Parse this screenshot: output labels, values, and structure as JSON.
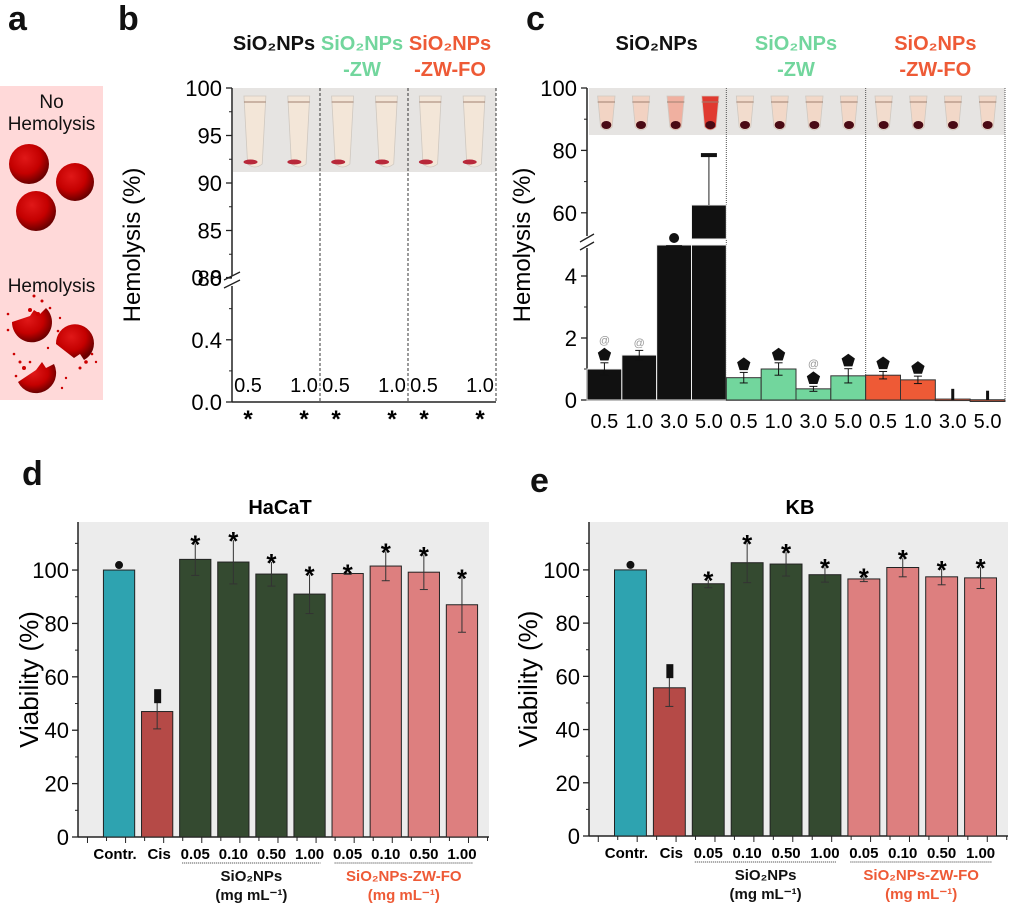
{
  "panels": {
    "a": {
      "letter": "a",
      "no_hemolysis_line1": "No",
      "no_hemolysis_line2": "Hemolysis",
      "hemolysis_label": "Hemolysis",
      "background_color": "#ffd9d9",
      "cell_color": "#cc0000"
    },
    "b": {
      "letter": "b"
    },
    "c": {
      "letter": "c"
    },
    "d": {
      "letter": "d"
    },
    "e": {
      "letter": "e"
    }
  },
  "colors": {
    "sio2": "#111111",
    "zw": "#72d69d",
    "zwfo": "#ee5a36",
    "control": "#2ea3b0",
    "cis": "#b54a47",
    "sio2_dark": "#344a30",
    "zwfo_light": "#dd7f7f",
    "plot_bg": "#ececec"
  },
  "chart_data": [
    {
      "id": "b",
      "type": "bar",
      "title": "",
      "ylabel": "Hemolysis (%)",
      "xlabel": "",
      "group_labels": [
        {
          "line1": "SiO₂NPs",
          "line2": "",
          "color": "#111111"
        },
        {
          "line1": "SiO₂NPs",
          "line2": "-ZW",
          "color": "#72d69d"
        },
        {
          "line1": "SiO₂NPs",
          "line2": "-ZW-FO",
          "color": "#ee5a36"
        }
      ],
      "categories": [
        "0.5",
        "1.0",
        "0.5",
        "1.0",
        "0.5",
        "1.0"
      ],
      "values": [
        0,
        0,
        0,
        0,
        0,
        0
      ],
      "annotations": [
        "*",
        "*",
        "*",
        "*",
        "*",
        "*"
      ],
      "y_axis_broken": true,
      "y_lower": {
        "range": [
          0,
          0.9
        ],
        "ticks": [
          "0.0",
          "0.4",
          "0.8"
        ]
      },
      "y_upper": {
        "range": [
          80,
          100
        ],
        "ticks": [
          "80",
          "85",
          "90",
          "95",
          "100"
        ]
      },
      "inset_photo": "test tubes with RBC pellets, clear supernatant",
      "grid": false
    },
    {
      "id": "c",
      "type": "bar",
      "title": "",
      "ylabel": "Hemolysis (%)",
      "xlabel": "",
      "group_labels": [
        {
          "line1": "SiO₂NPs",
          "line2": "",
          "color": "#111111"
        },
        {
          "line1": "SiO₂NPs",
          "line2": "-ZW",
          "color": "#72d69d"
        },
        {
          "line1": "SiO₂NPs",
          "line2": "-ZW-FO",
          "color": "#ee5a36"
        }
      ],
      "categories": [
        "0.5",
        "1.0",
        "3.0",
        "5.0",
        "0.5",
        "1.0",
        "3.0",
        "5.0",
        "0.5",
        "1.0",
        "3.0",
        "5.0"
      ],
      "series": [
        {
          "name": "SiO₂NPs",
          "color": "#111111",
          "values": [
            1.0,
            1.45,
            49,
            62.5
          ],
          "errors": [
            0.2,
            0.15,
            0,
            16
          ]
        },
        {
          "name": "SiO₂NPs-ZW",
          "color": "#72d69d",
          "values": [
            0.72,
            1.0,
            0.36,
            0.78
          ],
          "errors": [
            0.17,
            0.2,
            0.08,
            0.23
          ]
        },
        {
          "name": "SiO₂NPs-ZW-FO",
          "color": "#ee5a36",
          "values": [
            0.8,
            0.65,
            0.03,
            0
          ],
          "errors": [
            0.12,
            0.12,
            0.33,
            0.3
          ]
        }
      ],
      "annotations": [
        "@⬟",
        "@",
        "●",
        "",
        "⬟",
        "⬟",
        "@⬟",
        "⬟",
        "⬟",
        "⬟",
        "",
        ""
      ],
      "y_axis_broken": true,
      "y_lower": {
        "range": [
          0,
          5
        ],
        "ticks": [
          "0",
          "2",
          "4"
        ]
      },
      "y_upper": {
        "range": [
          50,
          100
        ],
        "ticks": [
          "60",
          "80",
          "100"
        ]
      },
      "inset_photo": "microtubes with supernatant; SiO2NPs 5.0 strongly red",
      "grid": false
    },
    {
      "id": "d",
      "type": "bar",
      "title": "HaCaT",
      "ylabel": "Viability (%)",
      "xlabel": "",
      "categories": [
        "Contr.",
        "Cis",
        "0.05",
        "0.10",
        "0.50",
        "1.00",
        "0.05",
        "0.10",
        "0.50",
        "1.00"
      ],
      "values": [
        100,
        47,
        104,
        103,
        98.5,
        91,
        98.7,
        101.5,
        99.2,
        87
      ],
      "errors": [
        0,
        6.5,
        6,
        8.2,
        4.5,
        7.3,
        0.3,
        5.5,
        6.5,
        10.3
      ],
      "bar_colors": [
        "#2ea3b0",
        "#b54a47",
        "#344a30",
        "#344a30",
        "#344a30",
        "#344a30",
        "#dd7f7f",
        "#dd7f7f",
        "#dd7f7f",
        "#dd7f7f"
      ],
      "annotations": [
        "●",
        "▮",
        "*",
        "*",
        "*",
        "*",
        "*",
        "*",
        "*",
        "*"
      ],
      "group_labels": [
        {
          "line1": "SiO₂NPs",
          "line2": "(mg mL⁻¹)",
          "color": "#111111"
        },
        {
          "line1": "SiO₂NPs-ZW-FO",
          "line2": "(mg mL⁻¹)",
          "color": "#ee5a36"
        }
      ],
      "ylim": [
        0,
        118
      ],
      "yticks": [
        "0",
        "20",
        "40",
        "60",
        "80",
        "100"
      ],
      "grid": false
    },
    {
      "id": "e",
      "type": "bar",
      "title": "KB",
      "ylabel": "Viability (%)",
      "xlabel": "",
      "categories": [
        "Contr.",
        "Cis",
        "0.05",
        "0.10",
        "0.50",
        "1.00",
        "0.05",
        "0.10",
        "0.50",
        "1.00"
      ],
      "values": [
        100,
        55.7,
        94.8,
        102.7,
        102.2,
        98.2,
        96.6,
        100.9,
        97.4,
        97
      ],
      "errors": [
        0,
        7,
        1.5,
        7.5,
        4.5,
        2.8,
        1,
        3.5,
        3,
        4
      ],
      "bar_colors": [
        "#2ea3b0",
        "#b54a47",
        "#344a30",
        "#344a30",
        "#344a30",
        "#344a30",
        "#dd7f7f",
        "#dd7f7f",
        "#dd7f7f",
        "#dd7f7f"
      ],
      "annotations": [
        "●",
        "▮",
        "*",
        "*",
        "*",
        "*",
        "*",
        "*",
        "*",
        "*"
      ],
      "group_labels": [
        {
          "line1": "SiO₂NPs",
          "line2": "(mg mL⁻¹)",
          "color": "#111111"
        },
        {
          "line1": "SiO₂NPs-ZW-FO",
          "line2": "(mg mL⁻¹)",
          "color": "#ee5a36"
        }
      ],
      "ylim": [
        0,
        118
      ],
      "yticks": [
        "0",
        "20",
        "40",
        "60",
        "80",
        "100"
      ],
      "grid": false
    }
  ]
}
